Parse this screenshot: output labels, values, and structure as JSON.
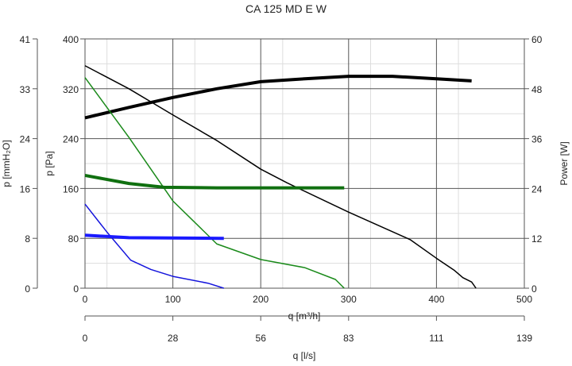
{
  "chart_data": {
    "type": "line",
    "title": "CA 125 MD E W",
    "xlabel": "q [m³/h]",
    "xlim": [
      0,
      500
    ],
    "xticks": [
      "0",
      "100",
      "200",
      "300",
      "400",
      "500"
    ],
    "x2label": "q [l/s]",
    "x2ticks": [
      "0",
      "28",
      "56",
      "83",
      "111",
      "139"
    ],
    "ylabel": "p [Pa]",
    "ylim": [
      0,
      400
    ],
    "yticks": [
      "0",
      "80",
      "160",
      "240",
      "320",
      "400"
    ],
    "y_left2_label": "p [mmH₂O]",
    "y_left2_ticks": [
      "0",
      "8",
      "16",
      "24",
      "33",
      "41"
    ],
    "y2label": "Power [W]",
    "y2lim": [
      0,
      60
    ],
    "y2ticks": [
      "0",
      "12",
      "24",
      "36",
      "48",
      "60"
    ],
    "grid": true,
    "series": [
      {
        "name": "pressure-high",
        "axis": "left",
        "color": "#000000",
        "width": 1.5,
        "points": [
          [
            0,
            357
          ],
          [
            50,
            320
          ],
          [
            100,
            278
          ],
          [
            150,
            237
          ],
          [
            200,
            191
          ],
          [
            230,
            169
          ],
          [
            300,
            122
          ],
          [
            370,
            78
          ],
          [
            400,
            48
          ],
          [
            420,
            29
          ],
          [
            430,
            17
          ],
          [
            440,
            10
          ],
          [
            445,
            0
          ]
        ]
      },
      {
        "name": "power-high",
        "axis": "right",
        "color": "#000000",
        "width": 4,
        "points": [
          [
            0,
            41
          ],
          [
            50,
            43.5
          ],
          [
            100,
            45.9
          ],
          [
            150,
            48
          ],
          [
            200,
            49.7
          ],
          [
            250,
            50.4
          ],
          [
            300,
            51
          ],
          [
            350,
            51
          ],
          [
            400,
            50.4
          ],
          [
            440,
            49.9
          ]
        ]
      },
      {
        "name": "pressure-medium",
        "axis": "left",
        "color": "#1a8a1a",
        "width": 1.5,
        "points": [
          [
            0,
            338
          ],
          [
            50,
            242
          ],
          [
            100,
            140
          ],
          [
            150,
            71
          ],
          [
            200,
            46
          ],
          [
            250,
            33
          ],
          [
            285,
            14
          ],
          [
            295,
            0
          ]
        ]
      },
      {
        "name": "power-medium",
        "axis": "left",
        "color": "#107010",
        "width": 4,
        "points": [
          [
            0,
            181
          ],
          [
            50,
            168
          ],
          [
            90,
            162
          ],
          [
            150,
            161
          ],
          [
            295,
            161
          ]
        ]
      },
      {
        "name": "pressure-low",
        "axis": "left",
        "color": "#1414dc",
        "width": 1.5,
        "points": [
          [
            0,
            135
          ],
          [
            25,
            90
          ],
          [
            52,
            45
          ],
          [
            75,
            30
          ],
          [
            100,
            19
          ],
          [
            140,
            8
          ],
          [
            158,
            0
          ]
        ]
      },
      {
        "name": "power-low",
        "axis": "left",
        "color": "#1a1aff",
        "width": 4,
        "points": [
          [
            0,
            85
          ],
          [
            50,
            81
          ],
          [
            158,
            80
          ]
        ]
      }
    ]
  }
}
